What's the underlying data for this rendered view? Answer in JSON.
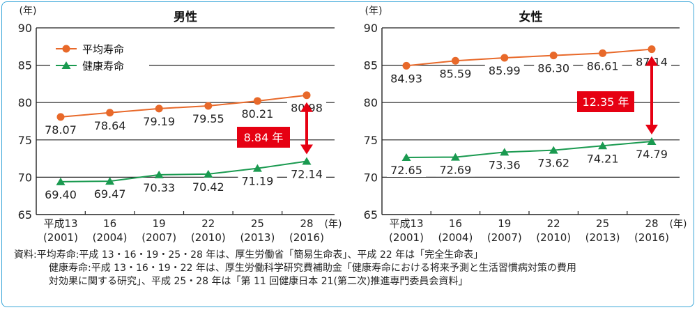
{
  "chart_data": [
    {
      "type": "line",
      "title": "男性",
      "yunit": "(年)",
      "xunit": "(年)",
      "ylim": [
        65,
        90
      ],
      "yticks": [
        65,
        70,
        75,
        80,
        85,
        90
      ],
      "categories": [
        {
          "top": "平成13",
          "bottom": "(2001)"
        },
        {
          "top": "16",
          "bottom": "(2004)"
        },
        {
          "top": "19",
          "bottom": "(2007)"
        },
        {
          "top": "22",
          "bottom": "(2010)"
        },
        {
          "top": "25",
          "bottom": "(2013)"
        },
        {
          "top": "28",
          "bottom": "(2016)"
        }
      ],
      "series": [
        {
          "name": "平均寿命",
          "color": "#e8692a",
          "marker": "circle",
          "values": [
            78.07,
            78.64,
            79.19,
            79.55,
            80.21,
            80.98
          ],
          "labels": [
            "78.07",
            "78.64",
            "79.19",
            "79.55",
            "80.21",
            "80.98"
          ]
        },
        {
          "name": "健康寿命",
          "color": "#1a9a50",
          "marker": "triangle",
          "values": [
            69.4,
            69.47,
            70.33,
            70.42,
            71.19,
            72.14
          ],
          "labels": [
            "69.40",
            "69.47",
            "70.33",
            "70.42",
            "71.19",
            "72.14"
          ]
        }
      ],
      "legend": "top-left",
      "gap_annotation": {
        "text": "8.84 年",
        "color": "#e60012"
      }
    },
    {
      "type": "line",
      "title": "女性",
      "yunit": "(年)",
      "xunit": "(年)",
      "ylim": [
        65,
        90
      ],
      "yticks": [
        65,
        70,
        75,
        80,
        85,
        90
      ],
      "categories": [
        {
          "top": "平成13",
          "bottom": "(2001)"
        },
        {
          "top": "16",
          "bottom": "(2004)"
        },
        {
          "top": "19",
          "bottom": "(2007)"
        },
        {
          "top": "22",
          "bottom": "(2010)"
        },
        {
          "top": "25",
          "bottom": "(2013)"
        },
        {
          "top": "28",
          "bottom": "(2016)"
        }
      ],
      "series": [
        {
          "name": "平均寿命",
          "color": "#e8692a",
          "marker": "circle",
          "values": [
            84.93,
            85.59,
            85.99,
            86.3,
            86.61,
            87.14
          ],
          "labels": [
            "84.93",
            "85.59",
            "85.99",
            "86.30",
            "86.61",
            "87.14"
          ]
        },
        {
          "name": "健康寿命",
          "color": "#1a9a50",
          "marker": "triangle",
          "values": [
            72.65,
            72.69,
            73.36,
            73.62,
            74.21,
            74.79
          ],
          "labels": [
            "72.65",
            "72.69",
            "73.36",
            "73.62",
            "74.21",
            "74.79"
          ]
        }
      ],
      "legend": "none",
      "gap_annotation": {
        "text": "12.35 年",
        "color": "#e60012"
      }
    }
  ],
  "source": {
    "line1": "資料:平均寿命:平成 13・16・19・25・28 年は、厚生労働省「簡易生命表」、平成 22 年は「完全生命表」",
    "line2": "健康寿命:平成 13・16・19・22 年は、厚生労働科学研究費補助金「健康寿命における将来予測と生活習慣病対策の費用",
    "line3": "対効果に関する研究」、平成 25・28 年は「第 11 回健康日本 21(第二次)推進専門委員会資料」"
  },
  "colors": {
    "frame": "#3aa6d8",
    "gridline": "#222222",
    "axis": "#222222"
  }
}
